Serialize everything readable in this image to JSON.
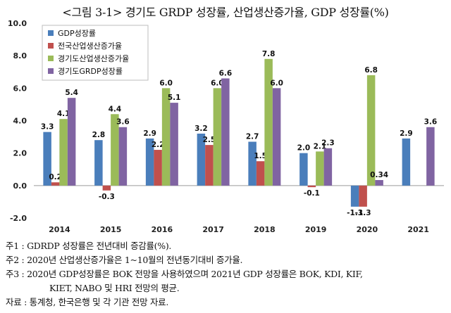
{
  "title": "<그림 3-1> 경기도 GRDP 성장률, 산업생산증가율, GDP 성장률(%)",
  "chart_data": {
    "type": "bar",
    "categories": [
      "2014",
      "2015",
      "2016",
      "2017",
      "2018",
      "2019",
      "2020",
      "2021"
    ],
    "series": [
      {
        "name": "GDP성장률",
        "color": "#4a7ebb",
        "values": [
          3.3,
          2.8,
          2.9,
          3.2,
          2.7,
          2.0,
          -1.3,
          2.9
        ],
        "labels": [
          "3.3",
          "2.8",
          "2.9",
          "3.2",
          "2.7",
          "2.0",
          "-1.3",
          "2.9"
        ]
      },
      {
        "name": "전국산업생산증가율",
        "color": "#c0504d",
        "values": [
          0.2,
          -0.3,
          2.2,
          2.5,
          1.5,
          -0.1,
          -1.3,
          null
        ],
        "labels": [
          "0.2",
          "-0.3",
          "2.2",
          "2.5",
          "1.5",
          "-0.1",
          "-1.3",
          ""
        ]
      },
      {
        "name": "경기도산업생산증가율",
        "color": "#9bbb59",
        "values": [
          4.1,
          4.4,
          6.0,
          6.0,
          7.8,
          2.1,
          6.8,
          null
        ],
        "labels": [
          "4.1",
          "4.4",
          "6.0",
          "6.0",
          "7.8",
          "2.1",
          "6.8",
          ""
        ]
      },
      {
        "name": "경기도GRDP성장률",
        "color": "#8064a2",
        "values": [
          5.4,
          3.6,
          5.1,
          6.6,
          6.0,
          2.3,
          0.34,
          3.6
        ],
        "labels": [
          "5.4",
          "3.6",
          "5.1",
          "6.6",
          "6.0",
          "2.3",
          "0.34",
          "3.6"
        ]
      }
    ],
    "ylim": [
      -2.0,
      10.0
    ],
    "yticks": [
      "-2.0",
      "0.0",
      "2.0",
      "4.0",
      "6.0",
      "8.0",
      "10.0"
    ],
    "grid": false,
    "legend_position": "top-left"
  },
  "notes": [
    "주1 : GDRDP 성장률은 전년대비 증감률(%).",
    "주2 : 2020년 산업생산증가율은 1~10월의 전년동기대비 증가율.",
    "주3 : 2020년 GDP성장률은 BOK 전망을 사용하였으며 2021년 GDP 성장률은 BOK, KDI, KIF,",
    "KIET, NABO 및 HRI 전망의 평균.",
    "자료 : 통계청, 한국은행 및 각 기관 전망 자료."
  ]
}
